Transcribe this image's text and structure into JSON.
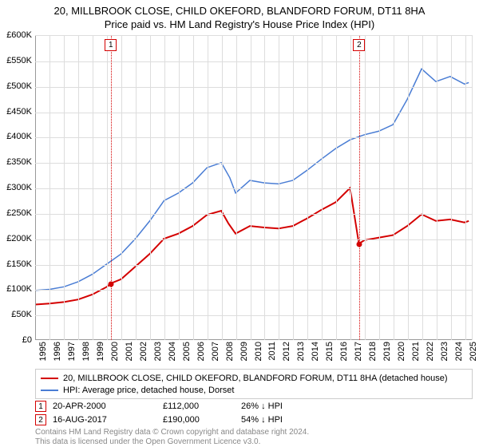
{
  "titles": {
    "line1": "20, MILLBROOK CLOSE, CHILD OKEFORD, BLANDFORD FORUM, DT11 8HA",
    "line2": "Price paid vs. HM Land Registry's House Price Index (HPI)"
  },
  "chart": {
    "type": "line",
    "background_color": "#ffffff",
    "grid_color": "#dddddd",
    "axis_color": "#999999",
    "y": {
      "min": 0,
      "max": 600000,
      "step": 50000,
      "labels": [
        "£0",
        "£50K",
        "£100K",
        "£150K",
        "£200K",
        "£250K",
        "£300K",
        "£350K",
        "£400K",
        "£450K",
        "£500K",
        "£550K",
        "£600K"
      ]
    },
    "x": {
      "min": 1995,
      "max": 2025.5,
      "ticks": [
        1995,
        1996,
        1997,
        1998,
        1999,
        2000,
        2001,
        2002,
        2003,
        2004,
        2005,
        2006,
        2007,
        2008,
        2009,
        2010,
        2011,
        2012,
        2013,
        2014,
        2015,
        2016,
        2017,
        2018,
        2019,
        2020,
        2021,
        2022,
        2023,
        2024,
        2025
      ]
    },
    "series": [
      {
        "name": "property",
        "label": "20, MILLBROOK CLOSE, CHILD OKEFORD, BLANDFORD FORUM, DT11 8HA (detached house)",
        "color": "#d40000",
        "line_width": 2,
        "points": [
          [
            1995,
            70000
          ],
          [
            1996,
            72000
          ],
          [
            1997,
            75000
          ],
          [
            1998,
            80000
          ],
          [
            1999,
            90000
          ],
          [
            2000,
            105000
          ],
          [
            2000.3,
            112000
          ],
          [
            2001,
            120000
          ],
          [
            2002,
            145000
          ],
          [
            2003,
            170000
          ],
          [
            2004,
            200000
          ],
          [
            2005,
            210000
          ],
          [
            2006,
            225000
          ],
          [
            2007,
            247000
          ],
          [
            2008,
            255000
          ],
          [
            2008.5,
            230000
          ],
          [
            2009,
            210000
          ],
          [
            2010,
            225000
          ],
          [
            2011,
            222000
          ],
          [
            2012,
            220000
          ],
          [
            2013,
            225000
          ],
          [
            2014,
            240000
          ],
          [
            2015,
            257000
          ],
          [
            2016,
            272000
          ],
          [
            2017,
            300000
          ],
          [
            2017.62,
            190000
          ],
          [
            2018,
            197000
          ],
          [
            2019,
            202000
          ],
          [
            2020,
            207000
          ],
          [
            2021,
            225000
          ],
          [
            2022,
            248000
          ],
          [
            2023,
            235000
          ],
          [
            2024,
            238000
          ],
          [
            2025,
            232000
          ],
          [
            2025.3,
            235000
          ]
        ]
      },
      {
        "name": "hpi",
        "label": "HPI: Average price, detached house, Dorset",
        "color": "#4a7dd4",
        "line_width": 1.5,
        "points": [
          [
            1995,
            98000
          ],
          [
            1996,
            100000
          ],
          [
            1997,
            105000
          ],
          [
            1998,
            115000
          ],
          [
            1999,
            130000
          ],
          [
            2000,
            150000
          ],
          [
            2001,
            170000
          ],
          [
            2002,
            200000
          ],
          [
            2003,
            235000
          ],
          [
            2004,
            275000
          ],
          [
            2005,
            290000
          ],
          [
            2006,
            310000
          ],
          [
            2007,
            340000
          ],
          [
            2008,
            350000
          ],
          [
            2008.6,
            320000
          ],
          [
            2009,
            290000
          ],
          [
            2010,
            315000
          ],
          [
            2011,
            310000
          ],
          [
            2012,
            308000
          ],
          [
            2013,
            315000
          ],
          [
            2014,
            335000
          ],
          [
            2015,
            357000
          ],
          [
            2016,
            378000
          ],
          [
            2017,
            395000
          ],
          [
            2018,
            405000
          ],
          [
            2019,
            412000
          ],
          [
            2020,
            425000
          ],
          [
            2021,
            475000
          ],
          [
            2022,
            535000
          ],
          [
            2023,
            510000
          ],
          [
            2024,
            520000
          ],
          [
            2025,
            505000
          ],
          [
            2025.3,
            508000
          ]
        ]
      }
    ],
    "sale_markers": [
      {
        "n": "1",
        "color": "#d40000",
        "x": 2000.3,
        "y": 112000
      },
      {
        "n": "2",
        "color": "#d40000",
        "x": 2017.62,
        "y": 190000
      }
    ]
  },
  "legend": {
    "items": [
      {
        "color": "#d40000",
        "label": "20, MILLBROOK CLOSE, CHILD OKEFORD, BLANDFORD FORUM, DT11 8HA (detached house)"
      },
      {
        "color": "#4a7dd4",
        "label": "HPI: Average price, detached house, Dorset"
      }
    ]
  },
  "sales": [
    {
      "n": "1",
      "color": "#d40000",
      "date": "20-APR-2000",
      "price": "£112,000",
      "delta": "26% ↓ HPI"
    },
    {
      "n": "2",
      "color": "#d40000",
      "date": "16-AUG-2017",
      "price": "£190,000",
      "delta": "54% ↓ HPI"
    }
  ],
  "attribution": {
    "line1": "Contains HM Land Registry data © Crown copyright and database right 2024.",
    "line2": "This data is licensed under the Open Government Licence v3.0."
  },
  "fonts": {
    "title_size": 13,
    "axis_size": 11,
    "legend_size": 11,
    "attr_size": 10,
    "attr_color": "#888888"
  }
}
